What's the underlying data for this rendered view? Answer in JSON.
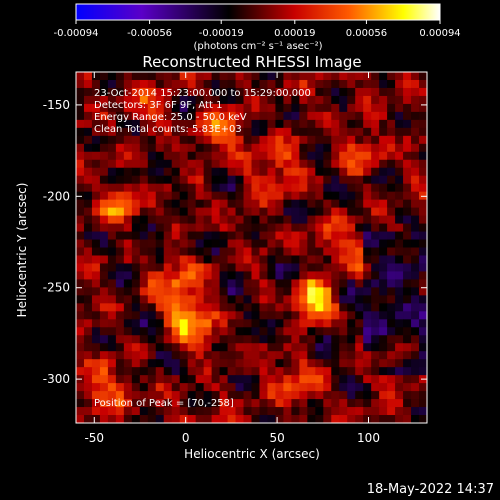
{
  "chart_data": {
    "type": "heatmap",
    "title": "Reconstructed RHESSI Image",
    "xlabel": "Heliocentric X (arcsec)",
    "ylabel": "Heliocentric Y (arcsec)",
    "xlim": [
      -60,
      132
    ],
    "ylim": [
      -324,
      -132
    ],
    "x_ticks": [
      -50,
      0,
      50,
      100
    ],
    "y_ticks": [
      -150,
      -200,
      -250,
      -300
    ],
    "colorbar": {
      "range": [
        -0.00094,
        0.00094
      ],
      "tick_values": [
        -0.00094,
        -0.00056,
        -0.00019,
        0.00019,
        0.00056,
        0.00094
      ],
      "tick_labels": [
        "-0.00094",
        "-0.00056",
        "-0.00019",
        "0.00019",
        "0.00056",
        "0.00094"
      ],
      "unit": "(photons cm⁻² s⁻¹ asec⁻²)",
      "colormap": [
        "#0000ff",
        "#5a00c8",
        "#000000",
        "#c80000",
        "#ff5a00",
        "#ffff00",
        "#ffffff"
      ]
    },
    "annotations": [
      "23-Oct-2014 15:23:00.000 to 15:29:00.000",
      "Detectors: 3F 6F 9F, Att 1",
      "Energy Range: 25.0 - 50.0 keV",
      "Clean     Total counts: 5.83E+03",
      "Position of Peak = [70,-258]"
    ],
    "peak": [
      70,
      -258
    ],
    "grid": false
  },
  "footer": {
    "timestamp": "18-May-2022 14:37"
  }
}
